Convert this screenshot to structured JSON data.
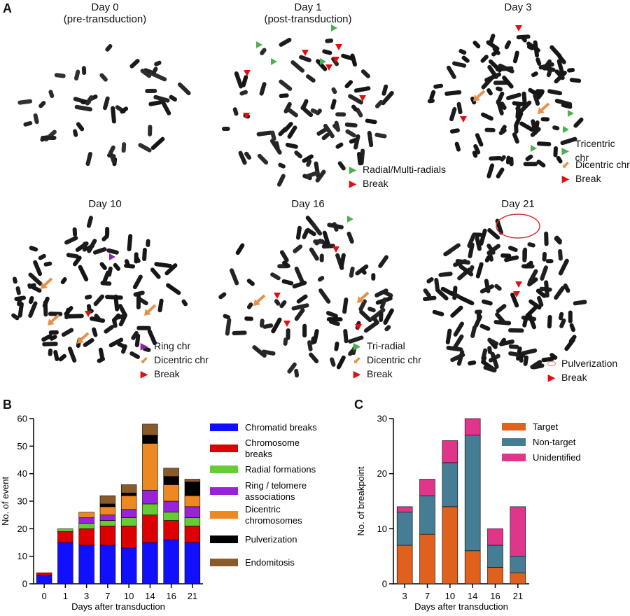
{
  "panels": {
    "a": {
      "letter": "A",
      "images": [
        {
          "title": "Day 0\n(pre-transduction)",
          "legend": []
        },
        {
          "title": "Day 1\n(post-transduction)",
          "legend": [
            {
              "symbol": "tri-green",
              "label": "Radial/Multi-radials"
            },
            {
              "symbol": "tri-red",
              "label": "Break"
            }
          ]
        },
        {
          "title": "Day 3",
          "legend": [
            {
              "symbol": "tri-green",
              "label": "Tricentric chr"
            },
            {
              "symbol": "arrow-orange",
              "label": "Dicentric chr"
            },
            {
              "symbol": "tri-red",
              "label": "Break"
            }
          ]
        },
        {
          "title": "Day 10",
          "legend": [
            {
              "symbol": "tri-purple",
              "label": "Ring chr"
            },
            {
              "symbol": "arrow-orange",
              "label": "Dicentric chr"
            },
            {
              "symbol": "tri-red",
              "label": "Break"
            }
          ]
        },
        {
          "title": "Day 16",
          "legend": [
            {
              "symbol": "tri-green",
              "label": "Tri-radial"
            },
            {
              "symbol": "arrow-orange",
              "label": "Dicentric chr"
            },
            {
              "symbol": "tri-red",
              "label": "Break"
            }
          ]
        },
        {
          "title": "Day 21",
          "legend": [
            {
              "symbol": "ellipse-red",
              "label": "Pulverization"
            },
            {
              "symbol": "tri-red",
              "label": "Break"
            }
          ]
        }
      ]
    },
    "b": {
      "letter": "B"
    },
    "c": {
      "letter": "C"
    }
  },
  "colors": {
    "tri_green": "#4caf50",
    "tri_red": "#e01010",
    "tri_purple": "#8e24aa",
    "arrow_orange": "#e8904a",
    "ellipse_red": "#d32f2f"
  },
  "chart_data": [
    {
      "id": "b",
      "type": "bar",
      "stacked": true,
      "categories": [
        "0",
        "1",
        "3",
        "7",
        "10",
        "14",
        "16",
        "21"
      ],
      "xlabel": "Days after transduction",
      "ylabel": "No. of event",
      "ylim": [
        0,
        60
      ],
      "yticks": [
        0,
        10,
        20,
        30,
        40,
        50,
        60
      ],
      "legend_position": "right",
      "series": [
        {
          "name": "Chromatid breaks",
          "color": "#1010ff",
          "values": [
            3,
            15,
            14,
            14,
            13,
            15,
            16,
            15
          ]
        },
        {
          "name": "Chromosome\nbreaks",
          "color": "#dd0000",
          "values": [
            1,
            4,
            6,
            7,
            8,
            10,
            7,
            6
          ]
        },
        {
          "name": "Radial formations",
          "color": "#66cc33",
          "values": [
            0,
            1,
            2,
            2,
            3,
            4,
            3,
            3
          ]
        },
        {
          "name": "Ring / telomere\nassociations",
          "color": "#9922dd",
          "values": [
            0,
            0,
            2,
            2,
            3,
            5,
            4,
            4
          ]
        },
        {
          "name": "Dicentric\nchromosomes",
          "color": "#ee8822",
          "values": [
            0,
            0,
            2,
            3,
            5,
            17,
            6,
            4
          ]
        },
        {
          "name": "Pulverization",
          "color": "#000000",
          "values": [
            0,
            0,
            0,
            1,
            1,
            3,
            3,
            5
          ]
        },
        {
          "name": "Endomitosis",
          "color": "#8b5a2b",
          "values": [
            0,
            0,
            0,
            3,
            3,
            4,
            3,
            1
          ]
        }
      ]
    },
    {
      "id": "c",
      "type": "bar",
      "stacked": true,
      "categories": [
        "3",
        "7",
        "10",
        "14",
        "16",
        "21"
      ],
      "xlabel": "Days after transduction",
      "ylabel": "No. of breakpoint",
      "ylim": [
        0,
        30
      ],
      "yticks": [
        0,
        10,
        20,
        30
      ],
      "legend_position": "top-right",
      "series": [
        {
          "name": "Target",
          "color": "#e0601e",
          "values": [
            7,
            9,
            14,
            6,
            3,
            2
          ]
        },
        {
          "name": "Non-target",
          "color": "#457e94",
          "values": [
            6,
            7,
            8,
            21,
            4,
            3
          ]
        },
        {
          "name": "Unidentified",
          "color": "#e0368a",
          "values": [
            1,
            3,
            4,
            3,
            3,
            9
          ]
        }
      ]
    }
  ]
}
